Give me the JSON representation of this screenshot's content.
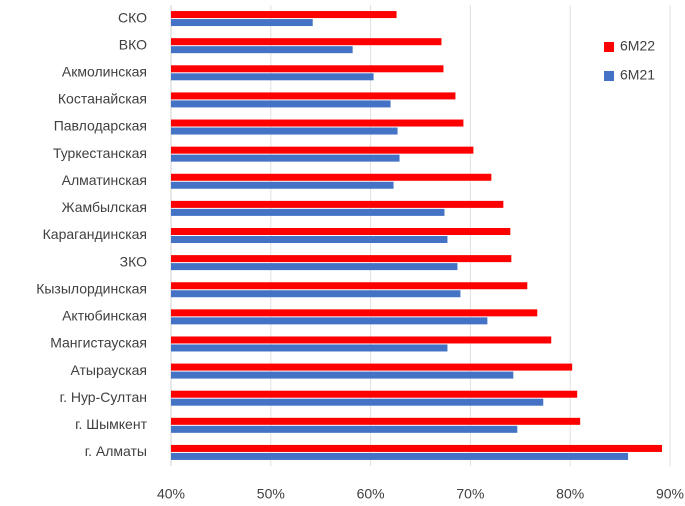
{
  "chart_data": {
    "type": "hbar",
    "categories": [
      "СКО",
      "ВКО",
      "Акмолинская",
      "Костанайская",
      "Павлодарская",
      "Туркестанская",
      "Алматинская",
      "Жамбылская",
      "Карагандинская",
      "ЗКО",
      "Кызылординская",
      "Актюбинская",
      "Мангистауская",
      "Атырауская",
      "г. Нур-Султан",
      "г. Шымкент",
      "г. Алматы"
    ],
    "series": [
      {
        "name": "6M22",
        "color": "#ff0000",
        "values": [
          62.6,
          67.1,
          67.3,
          68.5,
          69.3,
          70.3,
          72.1,
          73.3,
          74.0,
          74.1,
          75.7,
          76.7,
          78.1,
          80.2,
          80.7,
          81.0,
          89.2
        ]
      },
      {
        "name": "6M21",
        "color": "#4472c4",
        "values": [
          54.2,
          58.2,
          60.3,
          62.0,
          62.7,
          62.9,
          62.3,
          67.4,
          67.7,
          68.7,
          69.0,
          71.7,
          67.7,
          74.3,
          77.3,
          74.7,
          85.8
        ]
      }
    ],
    "xlim": [
      40,
      90
    ],
    "xticks": [
      {
        "value": 40,
        "label": "40%"
      },
      {
        "value": 50,
        "label": "50%"
      },
      {
        "value": 60,
        "label": "60%"
      },
      {
        "value": 70,
        "label": "70%"
      },
      {
        "value": 80,
        "label": "80%"
      },
      {
        "value": 90,
        "label": "90%"
      }
    ],
    "grid": true,
    "legend": "upper right"
  }
}
